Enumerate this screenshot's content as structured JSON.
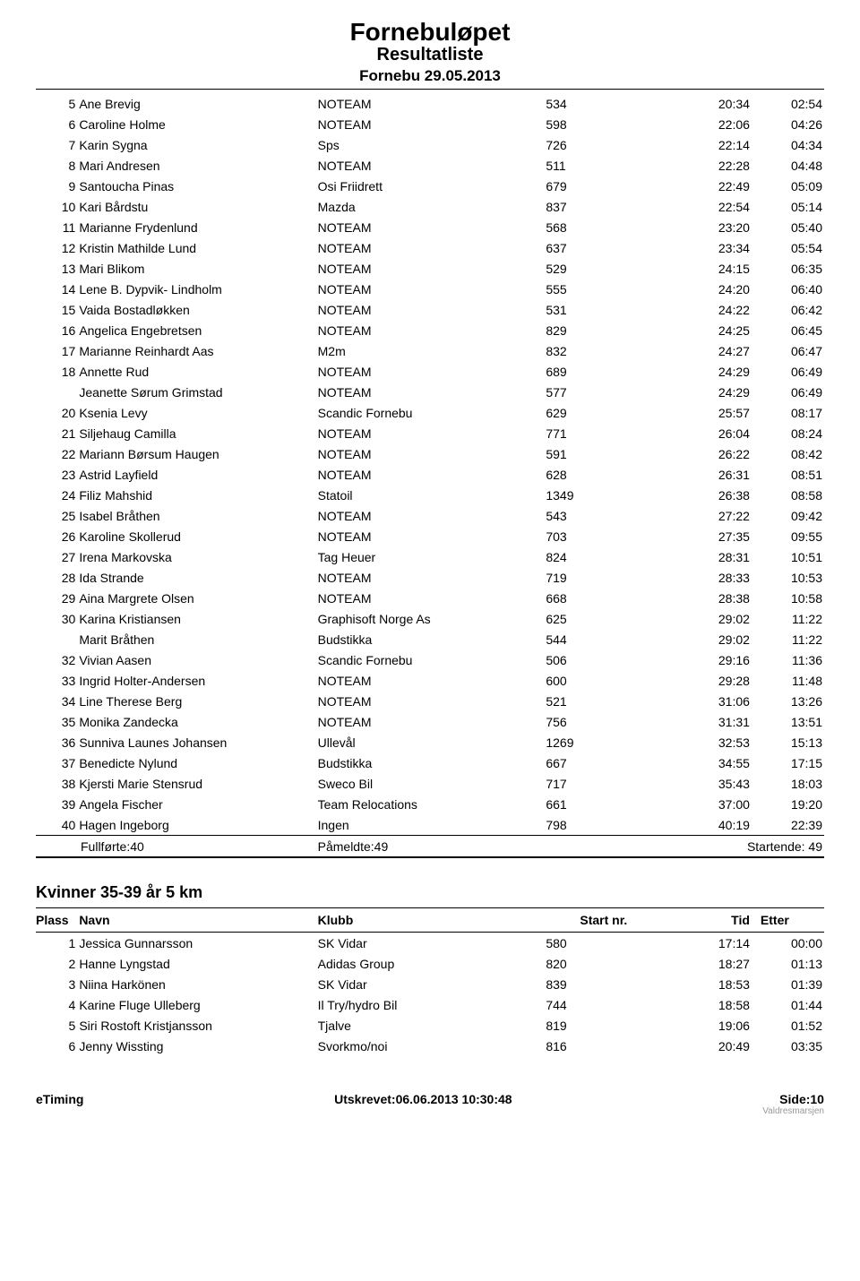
{
  "header": {
    "title": "Fornebuløpet",
    "subtitle": "Resultatliste",
    "date": "Fornebu 29.05.2013"
  },
  "results1": {
    "rows": [
      {
        "place": "5",
        "name": "Ane Brevig",
        "club": "NOTEAM",
        "bib": "534",
        "time": "20:34",
        "diff": "02:54"
      },
      {
        "place": "6",
        "name": "Caroline Holme",
        "club": "NOTEAM",
        "bib": "598",
        "time": "22:06",
        "diff": "04:26"
      },
      {
        "place": "7",
        "name": "Karin Sygna",
        "club": "Sps",
        "bib": "726",
        "time": "22:14",
        "diff": "04:34"
      },
      {
        "place": "8",
        "name": "Mari Andresen",
        "club": "NOTEAM",
        "bib": "511",
        "time": "22:28",
        "diff": "04:48"
      },
      {
        "place": "9",
        "name": "Santoucha Pinas",
        "club": "Osi Friidrett",
        "bib": "679",
        "time": "22:49",
        "diff": "05:09"
      },
      {
        "place": "10",
        "name": "Kari Bårdstu",
        "club": "Mazda",
        "bib": "837",
        "time": "22:54",
        "diff": "05:14"
      },
      {
        "place": "11",
        "name": "Marianne Frydenlund",
        "club": "NOTEAM",
        "bib": "568",
        "time": "23:20",
        "diff": "05:40"
      },
      {
        "place": "12",
        "name": "Kristin Mathilde Lund",
        "club": "NOTEAM",
        "bib": "637",
        "time": "23:34",
        "diff": "05:54"
      },
      {
        "place": "13",
        "name": "Mari Blikom",
        "club": "NOTEAM",
        "bib": "529",
        "time": "24:15",
        "diff": "06:35"
      },
      {
        "place": "14",
        "name": "Lene B. Dypvik- Lindholm",
        "club": "NOTEAM",
        "bib": "555",
        "time": "24:20",
        "diff": "06:40"
      },
      {
        "place": "15",
        "name": "Vaida Bostadløkken",
        "club": "NOTEAM",
        "bib": "531",
        "time": "24:22",
        "diff": "06:42"
      },
      {
        "place": "16",
        "name": "Angelica Engebretsen",
        "club": "NOTEAM",
        "bib": "829",
        "time": "24:25",
        "diff": "06:45"
      },
      {
        "place": "17",
        "name": "Marianne Reinhardt Aas",
        "club": "M2m",
        "bib": "832",
        "time": "24:27",
        "diff": "06:47"
      },
      {
        "place": "18",
        "name": "Annette Rud",
        "club": "NOTEAM",
        "bib": "689",
        "time": "24:29",
        "diff": "06:49"
      },
      {
        "place": "",
        "name": "Jeanette Sørum Grimstad",
        "club": "NOTEAM",
        "bib": "577",
        "time": "24:29",
        "diff": "06:49"
      },
      {
        "place": "20",
        "name": "Ksenia Levy",
        "club": "Scandic Fornebu",
        "bib": "629",
        "time": "25:57",
        "diff": "08:17"
      },
      {
        "place": "21",
        "name": "Siljehaug Camilla",
        "club": "NOTEAM",
        "bib": "771",
        "time": "26:04",
        "diff": "08:24"
      },
      {
        "place": "22",
        "name": "Mariann Børsum Haugen",
        "club": "NOTEAM",
        "bib": "591",
        "time": "26:22",
        "diff": "08:42"
      },
      {
        "place": "23",
        "name": "Astrid Layfield",
        "club": "NOTEAM",
        "bib": "628",
        "time": "26:31",
        "diff": "08:51"
      },
      {
        "place": "24",
        "name": "Filiz Mahshid",
        "club": "Statoil",
        "bib": "1349",
        "time": "26:38",
        "diff": "08:58"
      },
      {
        "place": "25",
        "name": "Isabel Bråthen",
        "club": "NOTEAM",
        "bib": "543",
        "time": "27:22",
        "diff": "09:42"
      },
      {
        "place": "26",
        "name": "Karoline Skollerud",
        "club": "NOTEAM",
        "bib": "703",
        "time": "27:35",
        "diff": "09:55"
      },
      {
        "place": "27",
        "name": "Irena Markovska",
        "club": "Tag Heuer",
        "bib": "824",
        "time": "28:31",
        "diff": "10:51"
      },
      {
        "place": "28",
        "name": "Ida Strande",
        "club": "NOTEAM",
        "bib": "719",
        "time": "28:33",
        "diff": "10:53"
      },
      {
        "place": "29",
        "name": "Aina Margrete Olsen",
        "club": "NOTEAM",
        "bib": "668",
        "time": "28:38",
        "diff": "10:58"
      },
      {
        "place": "30",
        "name": "Karina Kristiansen",
        "club": "Graphisoft Norge As",
        "bib": "625",
        "time": "29:02",
        "diff": "11:22"
      },
      {
        "place": "",
        "name": "Marit Bråthen",
        "club": "Budstikka",
        "bib": "544",
        "time": "29:02",
        "diff": "11:22"
      },
      {
        "place": "32",
        "name": "Vivian Aasen",
        "club": "Scandic Fornebu",
        "bib": "506",
        "time": "29:16",
        "diff": "11:36"
      },
      {
        "place": "33",
        "name": "Ingrid Holter-Andersen",
        "club": "NOTEAM",
        "bib": "600",
        "time": "29:28",
        "diff": "11:48"
      },
      {
        "place": "34",
        "name": "Line Therese Berg",
        "club": "NOTEAM",
        "bib": "521",
        "time": "31:06",
        "diff": "13:26"
      },
      {
        "place": "35",
        "name": "Monika Zandecka",
        "club": "NOTEAM",
        "bib": "756",
        "time": "31:31",
        "diff": "13:51"
      },
      {
        "place": "36",
        "name": "Sunniva Launes Johansen",
        "club": "Ullevål",
        "bib": "1269",
        "time": "32:53",
        "diff": "15:13"
      },
      {
        "place": "37",
        "name": "Benedicte Nylund",
        "club": "Budstikka",
        "bib": "667",
        "time": "34:55",
        "diff": "17:15"
      },
      {
        "place": "38",
        "name": "Kjersti Marie Stensrud",
        "club": "Sweco Bil",
        "bib": "717",
        "time": "35:43",
        "diff": "18:03"
      },
      {
        "place": "39",
        "name": "Angela Fischer",
        "club": "Team Relocations",
        "bib": "661",
        "time": "37:00",
        "diff": "19:20"
      },
      {
        "place": "40",
        "name": "Hagen Ingeborg",
        "club": "Ingen",
        "bib": "798",
        "time": "40:19",
        "diff": "22:39"
      }
    ],
    "summary": {
      "finished": "Fullførte:40",
      "registered": "Påmeldte:49",
      "started": "Startende: 49"
    }
  },
  "section2": {
    "title": "Kvinner 35-39 år 5 km",
    "headers": {
      "place": "Plass",
      "name": "Navn",
      "club": "Klubb",
      "bib": "Start nr.",
      "time": "Tid",
      "diff": "Etter"
    },
    "rows": [
      {
        "place": "1",
        "name": "Jessica Gunnarsson",
        "club": "SK Vidar",
        "bib": "580",
        "time": "17:14",
        "diff": "00:00"
      },
      {
        "place": "2",
        "name": "Hanne Lyngstad",
        "club": "Adidas Group",
        "bib": "820",
        "time": "18:27",
        "diff": "01:13"
      },
      {
        "place": "3",
        "name": "Niina Harkönen",
        "club": "SK Vidar",
        "bib": "839",
        "time": "18:53",
        "diff": "01:39"
      },
      {
        "place": "4",
        "name": "Karine Fluge Ulleberg",
        "club": "Il Try/hydro Bil",
        "bib": "744",
        "time": "18:58",
        "diff": "01:44"
      },
      {
        "place": "5",
        "name": "Siri Rostoft Kristjansson",
        "club": "Tjalve",
        "bib": "819",
        "time": "19:06",
        "diff": "01:52"
      },
      {
        "place": "6",
        "name": "Jenny Wissting",
        "club": "Svorkmo/noi",
        "bib": "816",
        "time": "20:49",
        "diff": "03:35"
      }
    ]
  },
  "footer": {
    "left": "eTiming",
    "center": "Utskrevet:06.06.2013 10:30:48",
    "right": "Side:10",
    "right_sub": "Valdresmarsjen"
  }
}
